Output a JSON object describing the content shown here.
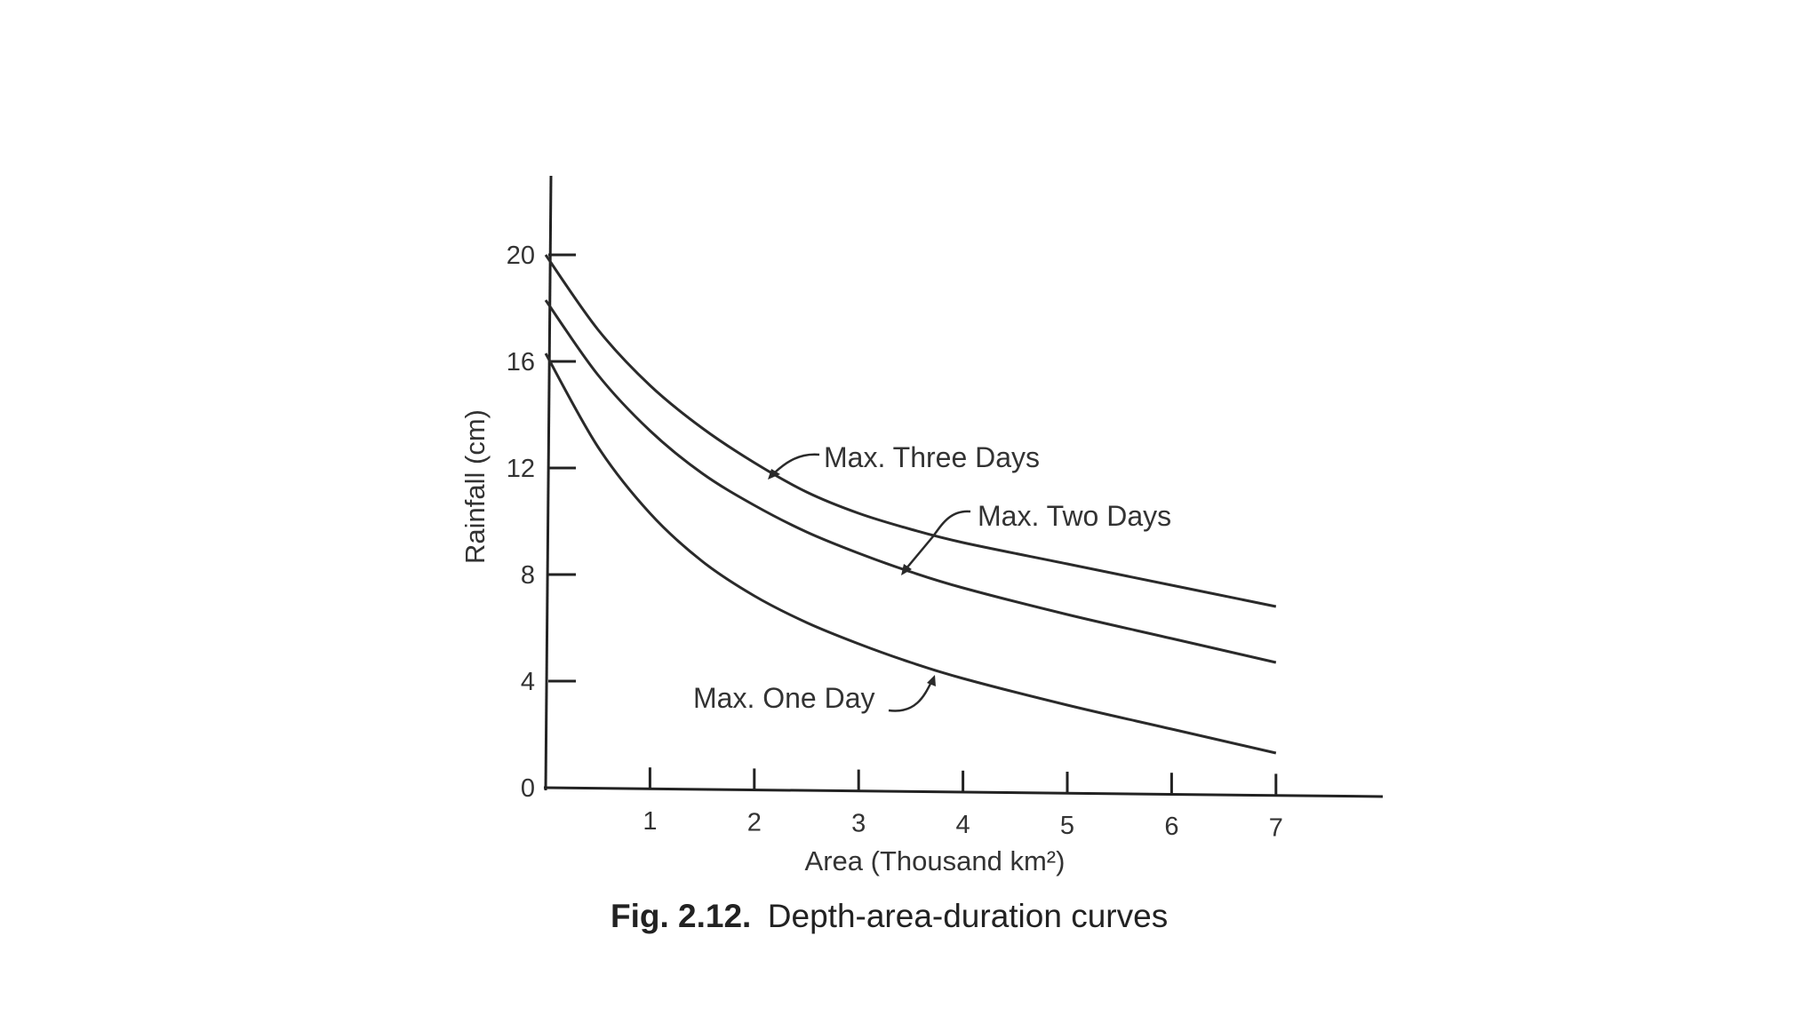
{
  "chart_data": {
    "type": "line",
    "xlabel": "Area (Thousand km²)",
    "ylabel": "Rainfall (cm)",
    "xlim": [
      0,
      8
    ],
    "ylim": [
      0,
      22
    ],
    "x_ticks": [
      "1",
      "2",
      "3",
      "4",
      "5",
      "6",
      "7"
    ],
    "y_ticks": [
      "0",
      "4",
      "8",
      "12",
      "16",
      "20"
    ],
    "grid": false,
    "series": [
      {
        "name": "Max. Three Days",
        "x": [
          0,
          0.5,
          1,
          1.5,
          2,
          2.5,
          3,
          3.5,
          4,
          5,
          6,
          7
        ],
        "y": [
          20,
          17.2,
          15.1,
          13.5,
          12.2,
          11.1,
          10.3,
          9.7,
          9.2,
          8.4,
          7.6,
          6.8
        ]
      },
      {
        "name": "Max. Two Days",
        "x": [
          0,
          0.5,
          1,
          1.5,
          2,
          2.5,
          3,
          3.5,
          4,
          5,
          6,
          7
        ],
        "y": [
          18.3,
          15.5,
          13.4,
          11.8,
          10.6,
          9.6,
          8.8,
          8.1,
          7.5,
          6.5,
          5.6,
          4.7
        ]
      },
      {
        "name": "Max. One Day",
        "x": [
          0,
          0.5,
          1,
          1.5,
          2,
          2.5,
          3,
          3.5,
          4,
          5,
          6,
          7
        ],
        "y": [
          16.3,
          12.8,
          10.3,
          8.5,
          7.2,
          6.2,
          5.4,
          4.7,
          4.1,
          3.1,
          2.2,
          1.3
        ]
      }
    ]
  },
  "caption": {
    "number": "Fig. 2.12.",
    "text": "Depth-area-duration  curves"
  }
}
